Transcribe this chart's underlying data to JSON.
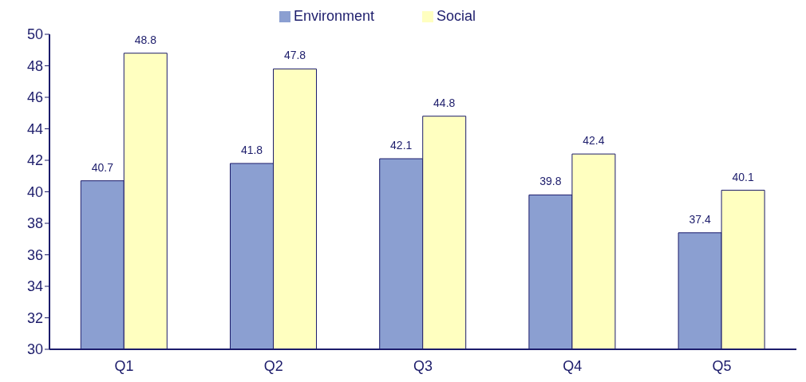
{
  "chart_data": {
    "type": "bar",
    "categories": [
      "Q1",
      "Q2",
      "Q3",
      "Q4",
      "Q5"
    ],
    "series": [
      {
        "name": "Environment",
        "color": "#8b9fd1",
        "values": [
          40.7,
          41.8,
          42.1,
          39.8,
          37.4
        ]
      },
      {
        "name": "Social",
        "color": "#ffffc0",
        "values": [
          48.8,
          47.8,
          44.8,
          42.4,
          40.1
        ]
      }
    ],
    "ylim": [
      30,
      50
    ],
    "yticks": [
      30,
      32,
      34,
      36,
      38,
      40,
      42,
      44,
      46,
      48,
      50
    ],
    "grid": false,
    "legend": "top",
    "data_labels": true
  }
}
